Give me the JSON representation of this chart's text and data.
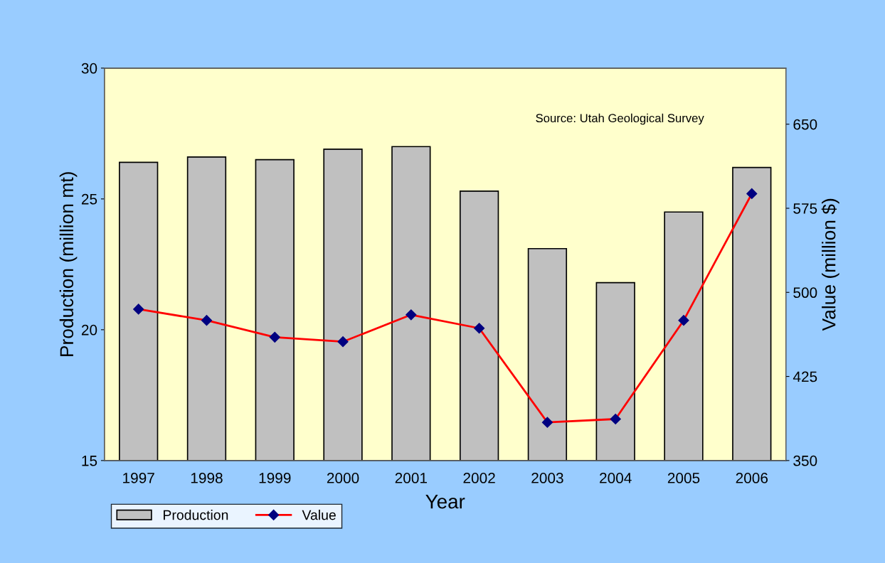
{
  "chart_data": {
    "type": "bar",
    "xlabel": "Year",
    "ylabel": "Production (million mt)",
    "y2label": "Value (million $)",
    "categories": [
      "1997",
      "1998",
      "1999",
      "2000",
      "2001",
      "2002",
      "2003",
      "2004",
      "2005",
      "2006"
    ],
    "series": [
      {
        "name": "Production",
        "color": "#c0c0c0",
        "values": [
          26.4,
          26.6,
          26.5,
          26.9,
          27.0,
          25.3,
          23.1,
          21.8,
          24.5,
          26.2
        ]
      },
      {
        "name": "Value",
        "type": "line",
        "axis": "y2",
        "color": "#ff0000",
        "values": [
          485,
          475,
          460,
          456,
          480,
          468,
          384,
          387,
          475,
          588
        ]
      }
    ],
    "ylim": [
      15,
      30
    ],
    "yticks": [
      15,
      20,
      25,
      30
    ],
    "y2lim": [
      350,
      700
    ],
    "y2ticks": [
      350,
      425,
      500,
      575,
      650
    ],
    "annotations": [
      "Source: Utah Geological Survey"
    ],
    "marker": "diamond",
    "grid": false,
    "legend": "bottom left"
  }
}
